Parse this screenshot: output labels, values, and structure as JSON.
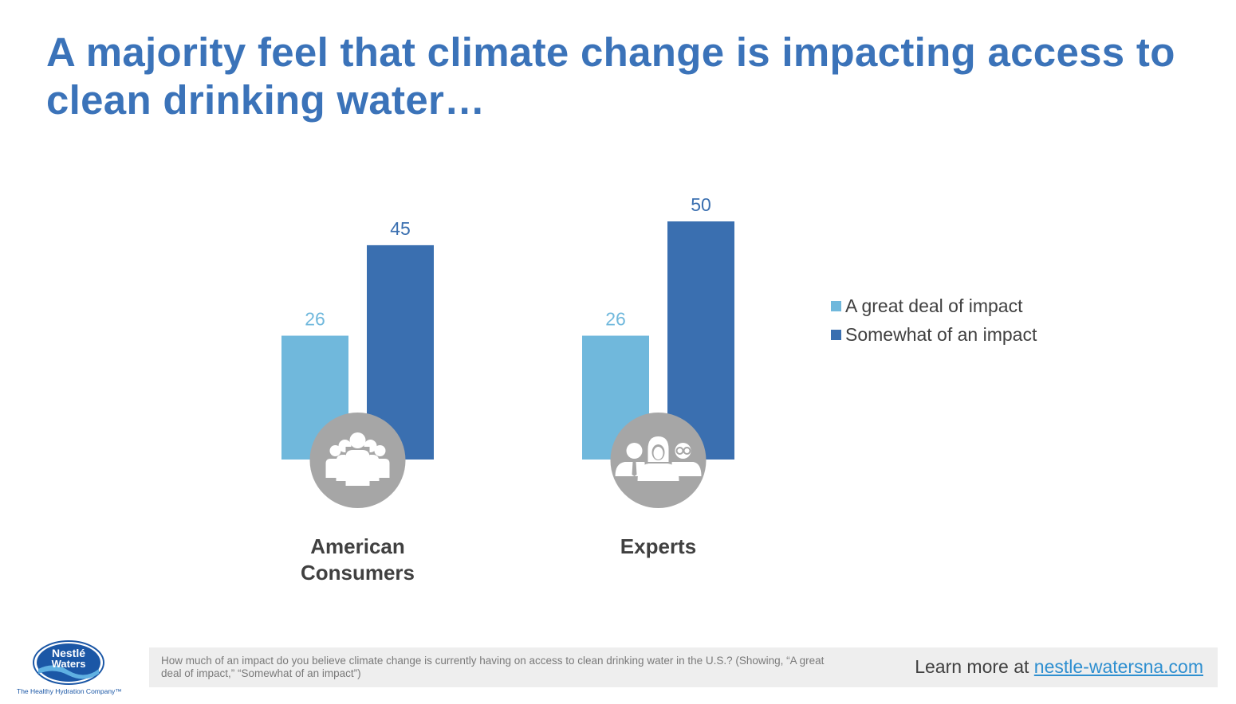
{
  "title": "A majority feel that climate change is impacting access to clean drinking water…",
  "colors": {
    "title": "#3b73b9",
    "light_bar": "#70b8dc",
    "dark_bar": "#3a6fb0",
    "icon_circle": "#a6a6a6",
    "label_text": "#404040"
  },
  "chart_data": {
    "type": "bar",
    "categories": [
      "American Consumers",
      "Experts"
    ],
    "category_icons": [
      "group-people-icon",
      "experts-people-icon"
    ],
    "series": [
      {
        "name": "A great deal of impact",
        "values": [
          26,
          26
        ],
        "color": "#70b8dc"
      },
      {
        "name": "Somewhat of an impact",
        "values": [
          45,
          50
        ],
        "color": "#3a6fb0"
      }
    ],
    "ylim": [
      0,
      55
    ],
    "legend_position": "right",
    "grid": false,
    "data_labels": true
  },
  "footer": {
    "question": "How much of an impact do you believe climate change is currently having on access to clean drinking water in the U.S.? (Showing, “A great deal of impact,” “Somewhat of an impact”)",
    "learn_prefix": "Learn more at ",
    "learn_link": "nestle-watersna.com"
  },
  "logo": {
    "line1": "Nestlé",
    "line2": "Waters",
    "tagline": "The Healthy Hydration Company™"
  }
}
